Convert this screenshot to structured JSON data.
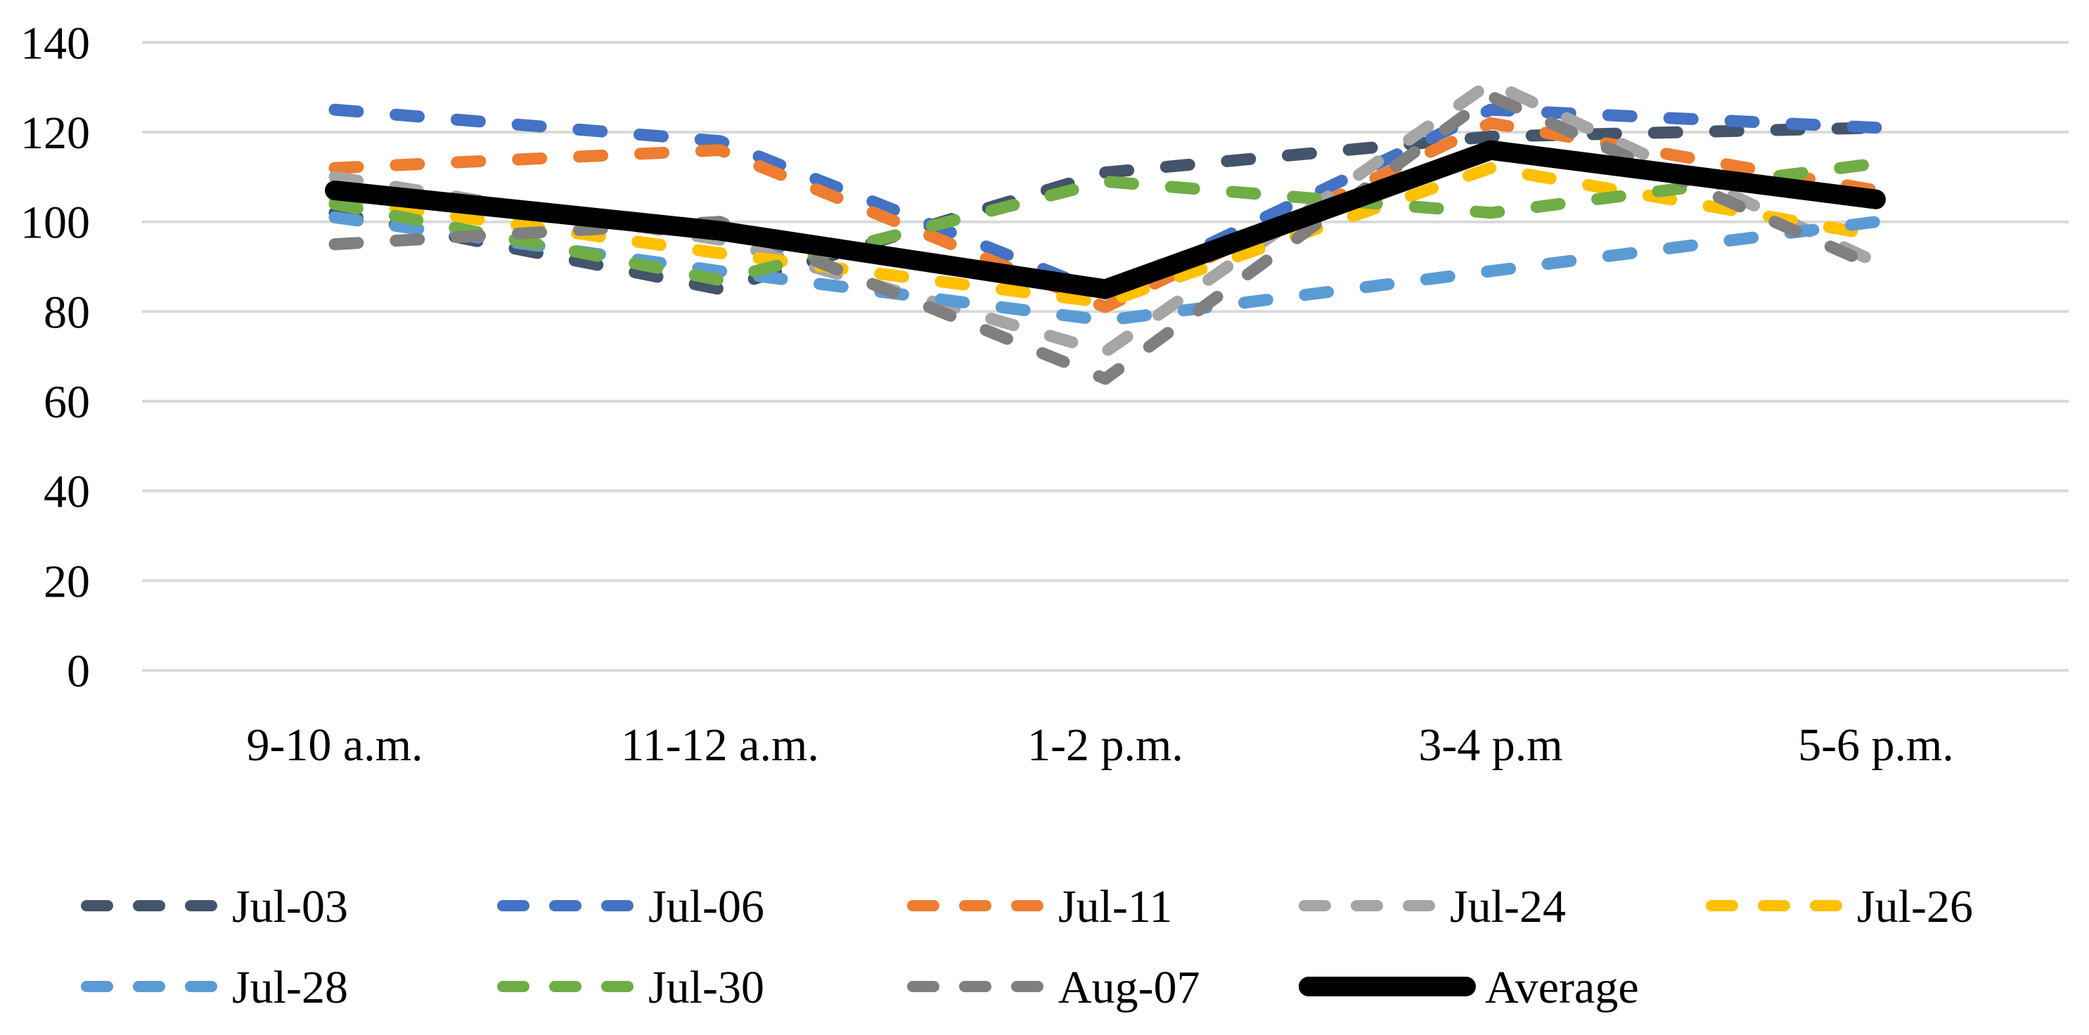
{
  "chart_data": {
    "type": "line",
    "title": "",
    "xlabel": "",
    "ylabel": "",
    "categories": [
      "9-10 a.m.",
      "11-12 a.m.",
      "1-2 p.m.",
      "3-4 p.m",
      "5-6 p.m."
    ],
    "y_ticks": [
      0,
      20,
      40,
      60,
      80,
      100,
      120,
      140
    ],
    "ylim": [
      0,
      140
    ],
    "grid": true,
    "gridline_color": "#D9D9D9",
    "background_color": "#FFFFFF",
    "legend_position": "bottom",
    "series": [
      {
        "name": "Jul-03",
        "color": "#44546A",
        "dashed": true,
        "thick": false,
        "values": [
          102,
          85,
          111,
          119,
          121
        ]
      },
      {
        "name": "Jul-06",
        "color": "#4472C4",
        "dashed": true,
        "thick": false,
        "values": [
          125,
          118,
          84,
          125,
          121
        ]
      },
      {
        "name": "Jul-11",
        "color": "#ED7D31",
        "dashed": true,
        "thick": false,
        "values": [
          112,
          116,
          81,
          122,
          107
        ]
      },
      {
        "name": "Jul-24",
        "color": "#A5A5A5",
        "dashed": true,
        "thick": false,
        "values": [
          110,
          96,
          71,
          131,
          91
        ]
      },
      {
        "name": "Jul-26",
        "color": "#FFC000",
        "dashed": true,
        "thick": false,
        "values": [
          105,
          93,
          82,
          112,
          97
        ]
      },
      {
        "name": "Jul-28",
        "color": "#5B9BD5",
        "dashed": true,
        "thick": false,
        "values": [
          101,
          89,
          78,
          89,
          100
        ]
      },
      {
        "name": "Jul-30",
        "color": "#70AD47",
        "dashed": true,
        "thick": false,
        "values": [
          104,
          87,
          109,
          102,
          113
        ]
      },
      {
        "name": "Aug-07",
        "color": "#7F7F7F",
        "dashed": true,
        "thick": false,
        "values": [
          95,
          100,
          65,
          128,
          90
        ]
      },
      {
        "name": "Average",
        "color": "#000000",
        "dashed": false,
        "thick": true,
        "values": [
          107,
          98,
          85,
          116,
          105
        ]
      }
    ],
    "legend_rows": [
      [
        "Jul-03",
        "Jul-06",
        "Jul-11",
        "Jul-24",
        "Jul-26"
      ],
      [
        "Jul-28",
        "Jul-30",
        "Aug-07",
        "Average"
      ]
    ]
  }
}
